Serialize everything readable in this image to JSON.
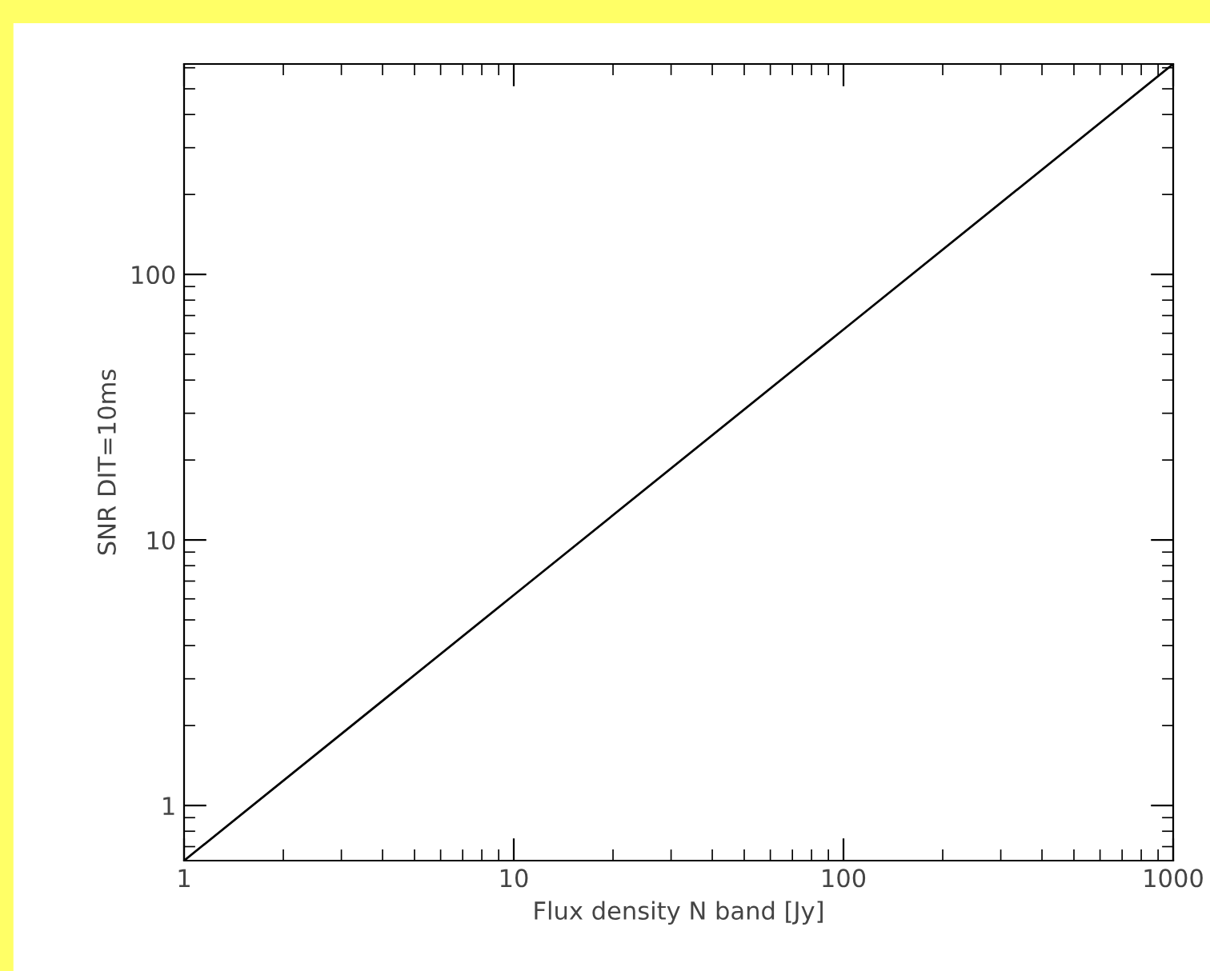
{
  "chart_data": {
    "type": "line",
    "xlabel": "Flux density N band [Jy]",
    "ylabel": "SNR DIT=10ms",
    "x": [
      1,
      10,
      100,
      1000
    ],
    "series": [
      {
        "color": "#000000",
        "values": [
          0.62,
          6.2,
          62,
          620
        ]
      }
    ],
    "log": "xy",
    "xlim": [
      1,
      1000
    ],
    "ylim": [
      0.62,
      620
    ],
    "xticks": [
      1,
      10,
      100,
      1000
    ],
    "yticks": [
      1,
      10,
      100
    ],
    "grid": false
  }
}
